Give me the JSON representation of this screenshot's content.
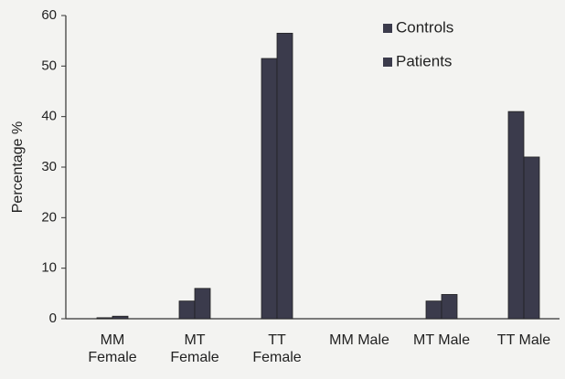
{
  "chart_data": {
    "type": "bar",
    "y_label": "Percentage %",
    "categories": [
      "MM Female",
      "MT Female",
      "TT Female",
      "MM Male",
      "MT Male",
      "TT Male"
    ],
    "series": [
      {
        "name": "Controls",
        "color": "#3b3b4c",
        "values": [
          0.2,
          3.5,
          51.5,
          0,
          3.5,
          41
        ]
      },
      {
        "name": "Patients",
        "color": "#3b3b4c",
        "values": [
          0.5,
          6,
          56.5,
          0,
          4.8,
          32
        ]
      }
    ],
    "ylim": [
      0,
      60
    ],
    "yticks": [
      0,
      10,
      20,
      30,
      40,
      50,
      60
    ],
    "grid": false,
    "legend": "top-right"
  }
}
